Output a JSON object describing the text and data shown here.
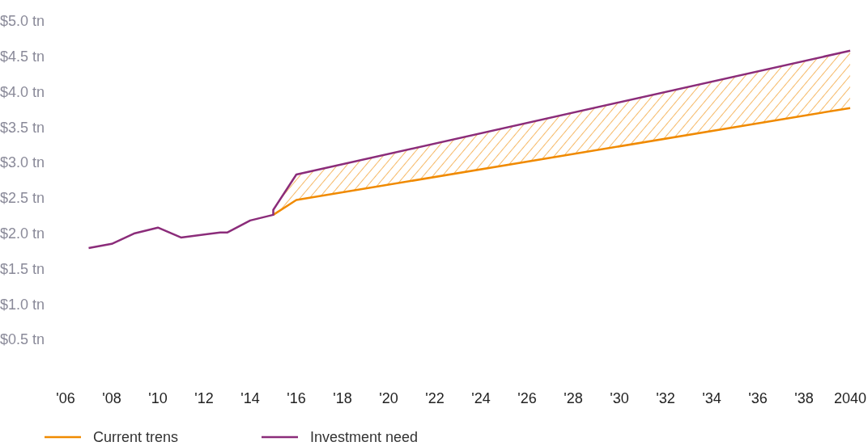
{
  "chart_data": {
    "type": "line",
    "xlim": [
      2006,
      2040
    ],
    "ylim": [
      0.5,
      5
    ],
    "xticks": [
      {
        "value": 2006,
        "label": "'06"
      },
      {
        "value": 2008,
        "label": "'08"
      },
      {
        "value": 2010,
        "label": "'10"
      },
      {
        "value": 2012,
        "label": "'12"
      },
      {
        "value": 2014,
        "label": "'14"
      },
      {
        "value": 2016,
        "label": "'16"
      },
      {
        "value": 2018,
        "label": "'18"
      },
      {
        "value": 2020,
        "label": "'20"
      },
      {
        "value": 2022,
        "label": "'22"
      },
      {
        "value": 2024,
        "label": "'24"
      },
      {
        "value": 2026,
        "label": "'26"
      },
      {
        "value": 2028,
        "label": "'28"
      },
      {
        "value": 2030,
        "label": "'30"
      },
      {
        "value": 2032,
        "label": "'32"
      },
      {
        "value": 2034,
        "label": "'34"
      },
      {
        "value": 2036,
        "label": "'36"
      },
      {
        "value": 2038,
        "label": "'38"
      },
      2040
    ],
    "yticks": [
      {
        "value": 0.5,
        "label": "$0.5 tn"
      },
      {
        "value": 1,
        "label": "$1.0 tn"
      },
      {
        "value": 1.5,
        "label": "$1.5 tn"
      },
      {
        "value": 2,
        "label": "$2.0 tn"
      },
      {
        "value": 2.5,
        "label": "$2.5 tn"
      },
      {
        "value": 3,
        "label": "$3.0 tn"
      },
      {
        "value": 3.5,
        "label": "$3.5 tn"
      },
      {
        "value": 4,
        "label": "$4.0 tn"
      },
      {
        "value": 4.5,
        "label": "$4.5 tn"
      },
      {
        "value": 5,
        "label": "$5.0 tn"
      }
    ],
    "grid": false,
    "legend": "bottom left",
    "marker": "none",
    "line_style": "solid",
    "series": [
      {
        "name": "Current trens",
        "color": "#f08a00",
        "x": [
          2015,
          2016,
          2040
        ],
        "values": [
          2.26,
          2.47,
          3.77
        ],
        "lower": [
          2.26,
          2.47,
          3.77
        ],
        "upper": [
          2.33,
          2.83,
          4.58
        ]
      },
      {
        "name": "Investment need",
        "color": "#8b2c7a",
        "x": [
          2007,
          2008,
          2009,
          2010,
          2011,
          2012.7,
          2013,
          2014,
          2015,
          2015,
          2016,
          2040
        ],
        "values": [
          1.79,
          1.85,
          2.0,
          2.08,
          1.94,
          2.01,
          2.01,
          2.18,
          2.26,
          2.33,
          2.83,
          4.58
        ]
      }
    ]
  }
}
